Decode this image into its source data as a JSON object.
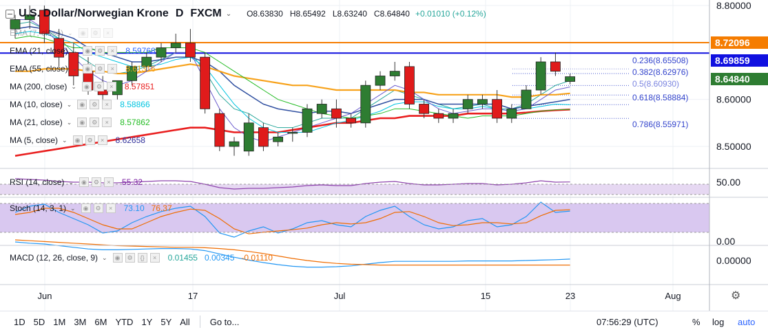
{
  "header": {
    "title": "U.S. Dollar/Norwegian Krone",
    "interval": "D",
    "source": "FXCM",
    "open": "O8.63830",
    "high": "H8.65492",
    "low": "L8.63240",
    "close": "C8.64840",
    "change": "+0.01010 (+0.12%)"
  },
  "indicators": [
    {
      "name": "EMA (7, close)",
      "value": "",
      "color": "#26a69a"
    },
    {
      "name": "EMA (21, close)",
      "value": "8.59768",
      "color": "#2962ff"
    },
    {
      "name": "EMA (55, close)",
      "value": "8.61316",
      "color": "#f7a21b"
    },
    {
      "name": "MA (200, close)",
      "value": "8.57851",
      "color": "#e91e1e"
    },
    {
      "name": "MA (10, close)",
      "value": "8.58866",
      "color": "#00c4e0"
    },
    {
      "name": "MA (21, close)",
      "value": "8.57862",
      "color": "#22bb22"
    },
    {
      "name": "MA (5, close)",
      "value": "8.62658",
      "color": "#2f2f9a"
    }
  ],
  "price_labels": [
    {
      "text": "8.72096",
      "color": "#f57c00"
    },
    {
      "text": "8.69859",
      "color": "#1010e0"
    },
    {
      "text": "8.64840",
      "color": "#2e7d32"
    }
  ],
  "fib_levels": [
    {
      "label": "0.236(8.65508)",
      "value": 8.65508
    },
    {
      "label": "0.382(8.62976)",
      "value": 8.62976
    },
    {
      "label": "0.5(8.60930)",
      "value": 8.6093
    },
    {
      "label": "0.618(8.58884)",
      "value": 8.58884
    },
    {
      "label": "0.786(8.55971)",
      "value": 8.55971
    }
  ],
  "rsi": {
    "name": "RSI (14, close)",
    "value": "55.32",
    "axis_label": "50.00"
  },
  "stoch": {
    "name": "Stoch (14, 3, 1)",
    "k_value": "73.10",
    "d_value": "76.37",
    "axis_label": "0.00"
  },
  "macd": {
    "name": "MACD (12, 26, close, 9)",
    "hist_value": "0.01455",
    "macd_value": "0.00345",
    "signal_value": "-0.01110",
    "axis_label": "0.00000"
  },
  "price_axis_ticks": [
    "8.80000",
    "8.60000",
    "8.50000"
  ],
  "x_axis_labels": [
    "Jun",
    "17",
    "Jul",
    "15",
    "23",
    "Aug"
  ],
  "toolbar": {
    "timeframes": [
      "1D",
      "5D",
      "1M",
      "3M",
      "6M",
      "YTD",
      "1Y",
      "5Y",
      "All"
    ],
    "goto": "Go to...",
    "clock": "07:56:29 (UTC)",
    "percent": "%",
    "log": "log",
    "auto": "auto"
  },
  "chart_data": {
    "type": "candlestick",
    "title": "U.S. Dollar/Norwegian Krone",
    "ylim": [
      8.45,
      8.81
    ],
    "horizontal_lines": [
      {
        "value": 8.72096,
        "color": "#f57c00"
      },
      {
        "value": 8.69859,
        "color": "#1010e0"
      }
    ],
    "candles": [
      {
        "o": 8.75,
        "h": 8.78,
        "l": 8.73,
        "c": 8.77
      },
      {
        "o": 8.77,
        "h": 8.8,
        "l": 8.75,
        "c": 8.78
      },
      {
        "o": 8.79,
        "h": 8.8,
        "l": 8.72,
        "c": 8.74
      },
      {
        "o": 8.73,
        "h": 8.75,
        "l": 8.67,
        "c": 8.69
      },
      {
        "o": 8.7,
        "h": 8.72,
        "l": 8.63,
        "c": 8.65
      },
      {
        "o": 8.66,
        "h": 8.69,
        "l": 8.61,
        "c": 8.62
      },
      {
        "o": 8.62,
        "h": 8.65,
        "l": 8.6,
        "c": 8.61
      },
      {
        "o": 8.61,
        "h": 8.64,
        "l": 8.6,
        "c": 8.64
      },
      {
        "o": 8.64,
        "h": 8.68,
        "l": 8.63,
        "c": 8.67
      },
      {
        "o": 8.67,
        "h": 8.7,
        "l": 8.66,
        "c": 8.69
      },
      {
        "o": 8.69,
        "h": 8.72,
        "l": 8.68,
        "c": 8.71
      },
      {
        "o": 8.71,
        "h": 8.74,
        "l": 8.7,
        "c": 8.72
      },
      {
        "o": 8.72,
        "h": 8.75,
        "l": 8.68,
        "c": 8.69
      },
      {
        "o": 8.69,
        "h": 8.7,
        "l": 8.57,
        "c": 8.58
      },
      {
        "o": 8.57,
        "h": 8.58,
        "l": 8.49,
        "c": 8.5
      },
      {
        "o": 8.5,
        "h": 8.52,
        "l": 8.48,
        "c": 8.51
      },
      {
        "o": 8.49,
        "h": 8.57,
        "l": 8.48,
        "c": 8.55
      },
      {
        "o": 8.54,
        "h": 8.55,
        "l": 8.49,
        "c": 8.5
      },
      {
        "o": 8.51,
        "h": 8.53,
        "l": 8.5,
        "c": 8.52
      },
      {
        "o": 8.53,
        "h": 8.54,
        "l": 8.51,
        "c": 8.53
      },
      {
        "o": 8.53,
        "h": 8.59,
        "l": 8.52,
        "c": 8.58
      },
      {
        "o": 8.57,
        "h": 8.6,
        "l": 8.56,
        "c": 8.59
      },
      {
        "o": 8.58,
        "h": 8.6,
        "l": 8.54,
        "c": 8.56
      },
      {
        "o": 8.56,
        "h": 8.57,
        "l": 8.54,
        "c": 8.55
      },
      {
        "o": 8.55,
        "h": 8.64,
        "l": 8.54,
        "c": 8.63
      },
      {
        "o": 8.63,
        "h": 8.66,
        "l": 8.62,
        "c": 8.65
      },
      {
        "o": 8.65,
        "h": 8.68,
        "l": 8.64,
        "c": 8.66
      },
      {
        "o": 8.67,
        "h": 8.68,
        "l": 8.58,
        "c": 8.59
      },
      {
        "o": 8.59,
        "h": 8.6,
        "l": 8.56,
        "c": 8.57
      },
      {
        "o": 8.57,
        "h": 8.58,
        "l": 8.55,
        "c": 8.56
      },
      {
        "o": 8.56,
        "h": 8.58,
        "l": 8.55,
        "c": 8.57
      },
      {
        "o": 8.58,
        "h": 8.61,
        "l": 8.57,
        "c": 8.6
      },
      {
        "o": 8.59,
        "h": 8.61,
        "l": 8.58,
        "c": 8.6
      },
      {
        "o": 8.6,
        "h": 8.62,
        "l": 8.55,
        "c": 8.56
      },
      {
        "o": 8.56,
        "h": 8.59,
        "l": 8.55,
        "c": 8.58
      },
      {
        "o": 8.58,
        "h": 8.63,
        "l": 8.58,
        "c": 8.62
      },
      {
        "o": 8.62,
        "h": 8.69,
        "l": 8.61,
        "c": 8.68
      },
      {
        "o": 8.68,
        "h": 8.7,
        "l": 8.65,
        "c": 8.66
      },
      {
        "o": 8.6383,
        "h": 8.65492,
        "l": 8.6324,
        "c": 8.6484
      }
    ],
    "series": [
      {
        "values": [
          8.76,
          8.765,
          8.75,
          8.73,
          8.7,
          8.68,
          8.66,
          8.655,
          8.66,
          8.67,
          8.685,
          8.7,
          8.7,
          8.66,
          8.61,
          8.58,
          8.57,
          8.55,
          8.54,
          8.54,
          8.55,
          8.56,
          8.56,
          8.56,
          8.58,
          8.6,
          8.62,
          8.61,
          8.6,
          8.59,
          8.58,
          8.585,
          8.59,
          8.58,
          8.58,
          8.59,
          8.61,
          8.63,
          8.64
        ]
      },
      {
        "values": [
          8.75,
          8.755,
          8.75,
          8.74,
          8.73,
          8.71,
          8.7,
          8.69,
          8.68,
          8.68,
          8.685,
          8.69,
          8.69,
          8.68,
          8.66,
          8.63,
          8.61,
          8.59,
          8.58,
          8.575,
          8.57,
          8.575,
          8.575,
          8.57,
          8.58,
          8.59,
          8.6,
          8.6,
          8.6,
          8.59,
          8.59,
          8.59,
          8.59,
          8.59,
          8.58,
          8.585,
          8.59,
          8.595,
          8.6
        ]
      },
      {
        "values": [
          8.66,
          8.66,
          8.665,
          8.665,
          8.665,
          8.66,
          8.66,
          8.655,
          8.655,
          8.66,
          8.665,
          8.67,
          8.675,
          8.67,
          8.66,
          8.65,
          8.645,
          8.64,
          8.635,
          8.63,
          8.63,
          8.625,
          8.62,
          8.62,
          8.62,
          8.62,
          8.62,
          8.615,
          8.615,
          8.61,
          8.61,
          8.61,
          8.61,
          8.61,
          8.605,
          8.605,
          8.61,
          8.61,
          8.613
        ]
      },
      {
        "values": [
          8.48,
          8.485,
          8.49,
          8.495,
          8.5,
          8.505,
          8.51,
          8.515,
          8.52,
          8.525,
          8.53,
          8.535,
          8.54,
          8.54,
          8.535,
          8.53,
          8.53,
          8.53,
          8.53,
          8.535,
          8.54,
          8.545,
          8.55,
          8.55,
          8.555,
          8.56,
          8.56,
          8.565,
          8.565,
          8.565,
          8.565,
          8.57,
          8.57,
          8.57,
          8.57,
          8.572,
          8.575,
          8.577,
          8.5785
        ]
      },
      {
        "values": [
          8.74,
          8.745,
          8.74,
          8.73,
          8.72,
          8.7,
          8.69,
          8.68,
          8.67,
          8.67,
          8.675,
          8.685,
          8.69,
          8.67,
          8.63,
          8.59,
          8.56,
          8.54,
          8.53,
          8.53,
          8.53,
          8.54,
          8.55,
          8.555,
          8.565,
          8.575,
          8.59,
          8.595,
          8.595,
          8.585,
          8.58,
          8.58,
          8.585,
          8.58,
          8.575,
          8.58,
          8.585,
          8.59,
          8.5887
        ]
      },
      {
        "values": [
          8.73,
          8.735,
          8.73,
          8.72,
          8.71,
          8.71,
          8.7,
          8.7,
          8.7,
          8.7,
          8.71,
          8.71,
          8.71,
          8.7,
          8.68,
          8.66,
          8.64,
          8.62,
          8.6,
          8.59,
          8.58,
          8.57,
          8.565,
          8.56,
          8.565,
          8.57,
          8.58,
          8.58,
          8.575,
          8.57,
          8.565,
          8.56,
          8.565,
          8.565,
          8.565,
          8.57,
          8.575,
          8.578,
          8.5786
        ]
      },
      {
        "values": [
          8.77,
          8.77,
          8.75,
          8.72,
          8.69,
          8.66,
          8.64,
          8.63,
          8.64,
          8.66,
          8.68,
          8.7,
          8.7,
          8.64,
          8.58,
          8.54,
          8.52,
          8.51,
          8.52,
          8.53,
          8.54,
          8.55,
          8.56,
          8.57,
          8.59,
          8.61,
          8.63,
          8.62,
          8.6,
          8.58,
          8.57,
          8.575,
          8.58,
          8.58,
          8.575,
          8.58,
          8.6,
          8.62,
          8.6266
        ]
      }
    ],
    "rsi_values": [
      60,
      59,
      58,
      56,
      55,
      55,
      54,
      54,
      55,
      56,
      57,
      57,
      56,
      52,
      47,
      45,
      46,
      46,
      47,
      48,
      50,
      51,
      50,
      50,
      53,
      55,
      56,
      53,
      51,
      51,
      52,
      53,
      53,
      51,
      52,
      54,
      57,
      55,
      55.3
    ],
    "stoch_k": [
      70,
      85,
      90,
      70,
      55,
      40,
      20,
      25,
      45,
      60,
      72,
      80,
      85,
      60,
      20,
      10,
      25,
      35,
      20,
      30,
      45,
      50,
      40,
      35,
      60,
      75,
      85,
      60,
      40,
      30,
      35,
      50,
      55,
      35,
      40,
      60,
      95,
      70,
      73.1
    ],
    "stoch_d": [
      65,
      70,
      80,
      80,
      70,
      55,
      40,
      30,
      30,
      45,
      60,
      70,
      78,
      75,
      55,
      30,
      18,
      22,
      25,
      28,
      32,
      40,
      45,
      42,
      45,
      55,
      70,
      72,
      60,
      45,
      38,
      40,
      45,
      45,
      42,
      45,
      62,
      75,
      76.4
    ],
    "macd_line": [
      0.045,
      0.042,
      0.04,
      0.036,
      0.032,
      0.028,
      0.026,
      0.026,
      0.027,
      0.028,
      0.029,
      0.029,
      0.028,
      0.024,
      0.016,
      0.008,
      0.001,
      -0.005,
      -0.01,
      -0.014,
      -0.016,
      -0.016,
      -0.015,
      -0.013,
      -0.009,
      -0.005,
      -0.002,
      -0.002,
      -0.002,
      -0.002,
      -0.002,
      -0.001,
      -0.001,
      -0.001,
      -0.001,
      0.0,
      0.001,
      0.002,
      0.0035
    ],
    "macd_signal": [
      0.05,
      0.048,
      0.046,
      0.044,
      0.042,
      0.04,
      0.038,
      0.036,
      0.035,
      0.034,
      0.033,
      0.032,
      0.032,
      0.031,
      0.029,
      0.026,
      0.022,
      0.017,
      0.011,
      0.005,
      0.0,
      -0.004,
      -0.007,
      -0.009,
      -0.01,
      -0.011,
      -0.011,
      -0.011,
      -0.011,
      -0.011,
      -0.011,
      -0.011,
      -0.011,
      -0.011,
      -0.011,
      -0.011,
      -0.011,
      -0.011,
      -0.0111
    ]
  }
}
